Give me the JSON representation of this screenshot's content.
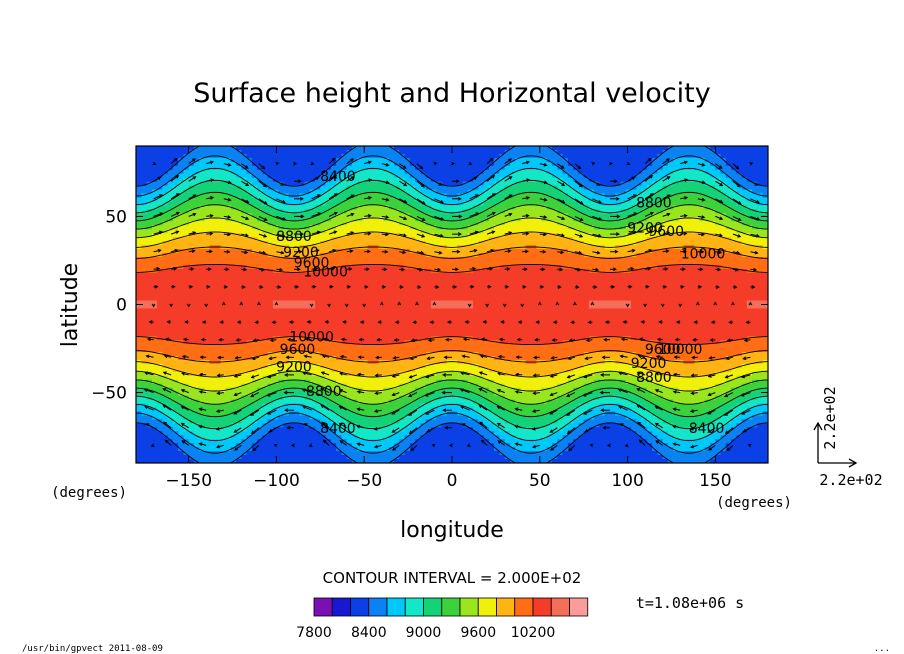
{
  "chart_data": {
    "type": "heatmap",
    "title": "Surface height and Horizontal velocity",
    "xlabel": "longitude",
    "ylabel": "latitude",
    "x_unit_label": "(degrees)",
    "y_unit_label": "(degrees)",
    "xlim": [
      -180,
      180
    ],
    "ylim": [
      -90,
      90
    ],
    "x_ticks": [
      -150,
      -100,
      -50,
      0,
      50,
      100,
      150
    ],
    "y_ticks": [
      -50,
      0,
      50
    ],
    "x_tick_labels": [
      "−150",
      "−100",
      "−50",
      "0",
      "50",
      "100",
      "150"
    ],
    "y_tick_labels": [
      "−50",
      "0",
      "50"
    ],
    "contour_interval_label": "CONTOUR INTERVAL = 2.000E+02",
    "contour_interval": 200,
    "time_label": "t=1.08e+06 s",
    "field": {
      "name": "surface height",
      "wavenumber": 4,
      "polar_min": 8200,
      "equator_max": 10400
    },
    "contour_labels": [
      {
        "lon": -65,
        "lat": 70,
        "text": "8400"
      },
      {
        "lon": -90,
        "lat": 36,
        "text": "8800"
      },
      {
        "lon": -86,
        "lat": 27,
        "text": "9200"
      },
      {
        "lon": -80,
        "lat": 21,
        "text": "9600"
      },
      {
        "lon": -72,
        "lat": 16,
        "text": "10000"
      },
      {
        "lon": 115,
        "lat": 55,
        "text": "8800"
      },
      {
        "lon": 110,
        "lat": 41,
        "text": "9200"
      },
      {
        "lon": 122,
        "lat": 39,
        "text": "9600"
      },
      {
        "lon": 143,
        "lat": 26,
        "text": "10000"
      },
      {
        "lon": -65,
        "lat": -73,
        "text": "8400"
      },
      {
        "lon": -80,
        "lat": -21,
        "text": "10000"
      },
      {
        "lon": -88,
        "lat": -28,
        "text": "9600"
      },
      {
        "lon": -90,
        "lat": -38,
        "text": "9200"
      },
      {
        "lon": -73,
        "lat": -52,
        "text": "8800"
      },
      {
        "lon": 120,
        "lat": -28,
        "text": "9600"
      },
      {
        "lon": 112,
        "lat": -36,
        "text": "9200"
      },
      {
        "lon": 115,
        "lat": -44,
        "text": "8800"
      },
      {
        "lon": 130,
        "lat": -28,
        "text": "10000"
      },
      {
        "lon": 145,
        "lat": -73,
        "text": "8400"
      }
    ],
    "legend": {
      "min_label": "7800",
      "tick_labels": [
        "7800",
        "8400",
        "9000",
        "9600",
        "10200"
      ],
      "colors": [
        "#7a0fb4",
        "#1818d2",
        "#0a40e6",
        "#0a82f4",
        "#00c8f8",
        "#14e6c8",
        "#14d278",
        "#3cd23c",
        "#9ae61e",
        "#f0f00a",
        "#ffb414",
        "#ff6e14",
        "#f53c28",
        "#f56e5a",
        "#f89c9c"
      ]
    },
    "vector_reference": {
      "x_label": "2.2e+02",
      "y_label": "2.2e+02"
    }
  },
  "footer": {
    "left": "/usr/bin/gpvect   2011-08-09",
    "right": "..."
  }
}
